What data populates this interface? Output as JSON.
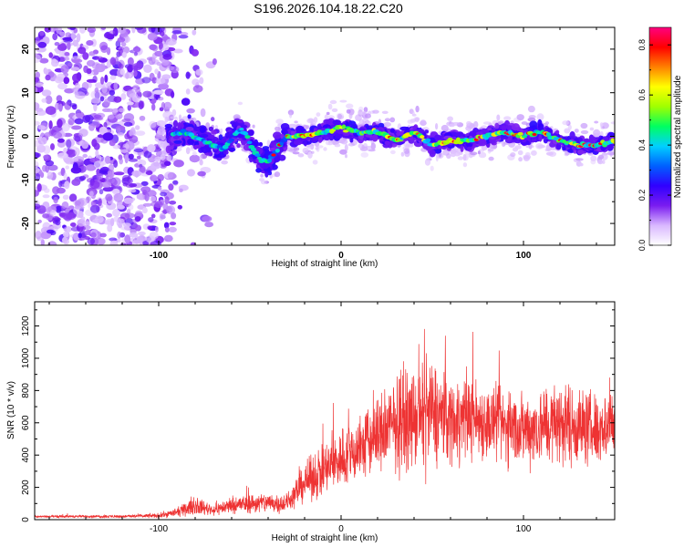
{
  "page_title": "S196.2026.104.18.22.C20",
  "chart_data": [
    {
      "type": "heatmap",
      "name": "spectrogram",
      "xlabel": "Height of straight line (km)",
      "ylabel": "Frequency (Hz)",
      "xlim": [
        -168,
        150
      ],
      "ylim": [
        -25,
        25
      ],
      "x_ticks": [
        -100,
        0,
        100
      ],
      "y_ticks": [
        -20,
        -10,
        0,
        10,
        20
      ],
      "colorbar": {
        "label": "Normalized spectral amplitude",
        "range": [
          0.0,
          0.87
        ],
        "ticks": [
          0.0,
          0.2,
          0.4,
          0.6,
          0.8
        ],
        "colors": [
          "#ffffff",
          "#d9b8ff",
          "#7a1cf0",
          "#3000ff",
          "#0060ff",
          "#00d0ff",
          "#00ff60",
          "#a0ff00",
          "#ffff00",
          "#ff8000",
          "#ff0000",
          "#ff0080"
        ]
      },
      "ridge_track": {
        "description": "frequency of dominant spectral ridge vs height",
        "x": [
          -95,
          -85,
          -75,
          -65,
          -55,
          -45,
          -40,
          -35,
          -30,
          -20,
          -10,
          0,
          10,
          20,
          30,
          40,
          50,
          60,
          70,
          80,
          90,
          100,
          110,
          120,
          130,
          140,
          150
        ],
        "y": [
          0,
          1,
          -1,
          -3,
          2,
          -5,
          -6,
          -3,
          0,
          0,
          1,
          2,
          1,
          1,
          -1,
          1,
          -2,
          -1,
          -1,
          0,
          1,
          0,
          1,
          -1,
          -2,
          -2,
          -1
        ]
      }
    },
    {
      "type": "line",
      "name": "snr",
      "xlabel": "Height of straight line (km)",
      "ylabel": "SNR (10 * v/v)",
      "xlim": [
        -168,
        150
      ],
      "ylim": [
        0,
        1350
      ],
      "x_ticks": [
        -100,
        0,
        100
      ],
      "y_ticks": [
        0,
        200,
        400,
        600,
        800,
        1000,
        1200
      ],
      "line_color": "#ee3333",
      "envelope": {
        "x": [
          -168,
          -120,
          -100,
          -90,
          -80,
          -70,
          -60,
          -50,
          -40,
          -30,
          -20,
          -10,
          0,
          10,
          20,
          30,
          40,
          50,
          60,
          70,
          80,
          90,
          100,
          110,
          120,
          130,
          140,
          150
        ],
        "mean": [
          20,
          20,
          25,
          45,
          85,
          60,
          90,
          100,
          105,
          100,
          230,
          300,
          380,
          440,
          520,
          600,
          620,
          660,
          620,
          640,
          600,
          580,
          560,
          580,
          600,
          580,
          560,
          600
        ],
        "spread": [
          10,
          12,
          20,
          35,
          70,
          45,
          70,
          80,
          85,
          80,
          150,
          220,
          250,
          280,
          330,
          380,
          380,
          430,
          360,
          330,
          310,
          300,
          300,
          320,
          340,
          320,
          300,
          280
        ]
      }
    }
  ]
}
